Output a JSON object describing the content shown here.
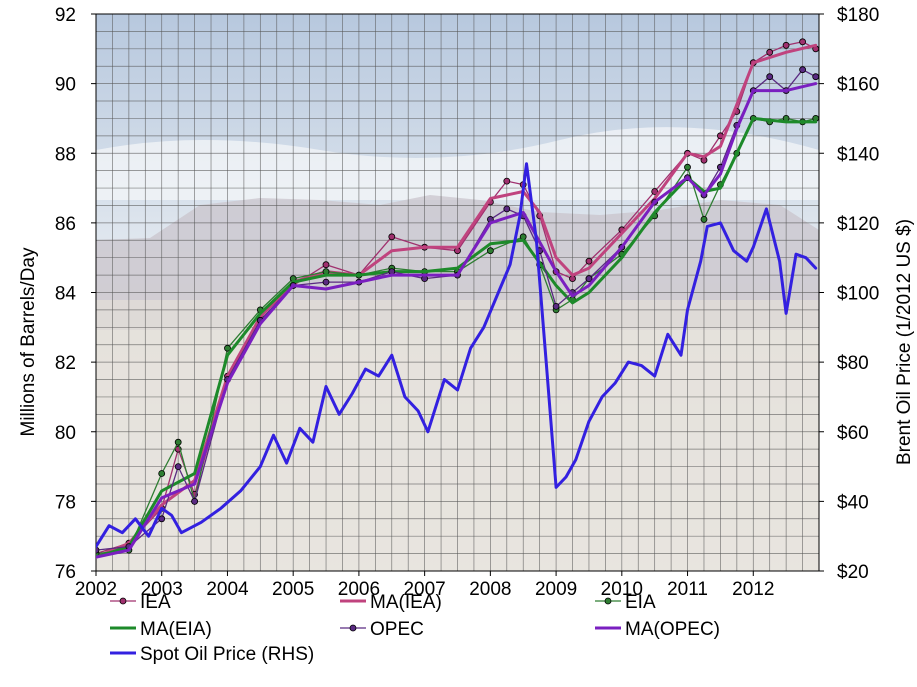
{
  "chart_data": {
    "type": "line",
    "xlabel": "",
    "ylabel": "Millions of Barrels/Day",
    "ylabel_right": "Brent Oil Price (1/2012 US $)",
    "xlim": [
      2002,
      2013
    ],
    "ylim": [
      76,
      92
    ],
    "ylim_right": [
      20,
      180
    ],
    "x_ticks": [
      "2002",
      "2003",
      "2004",
      "2005",
      "2006",
      "2007",
      "2008",
      "2009",
      "2010",
      "2011",
      "2012"
    ],
    "y_ticks_left": [
      "76",
      "78",
      "80",
      "82",
      "84",
      "86",
      "88",
      "90",
      "92"
    ],
    "y_ticks_right": [
      "$20",
      "$40",
      "$60",
      "$80",
      "$100",
      "$120",
      "$140",
      "$160",
      "$180"
    ],
    "grid": true,
    "background": "faded landscape photograph (mountain and city)",
    "legend_position": "bottom",
    "series": [
      {
        "name": "IEA",
        "axis": "left",
        "color": "#a0306e",
        "style": "line+markers",
        "x": [
          2002.0,
          2002.5,
          2003.0,
          2003.25,
          2003.5,
          2004.0,
          2004.5,
          2005.0,
          2005.5,
          2006.0,
          2006.5,
          2007.0,
          2007.5,
          2008.0,
          2008.25,
          2008.5,
          2008.75,
          2009.0,
          2009.25,
          2009.5,
          2010.0,
          2010.5,
          2011.0,
          2011.25,
          2011.5,
          2011.75,
          2012.0,
          2012.25,
          2012.5,
          2012.75,
          2012.95
        ],
        "y": [
          76.5,
          76.8,
          77.8,
          79.5,
          78.2,
          81.6,
          83.3,
          84.2,
          84.8,
          84.5,
          85.6,
          85.3,
          85.2,
          86.6,
          87.2,
          87.1,
          86.2,
          84.6,
          84.4,
          84.9,
          85.8,
          86.9,
          88.0,
          87.8,
          88.5,
          89.2,
          90.6,
          90.9,
          91.1,
          91.2,
          91.0
        ]
      },
      {
        "name": "MA(IEA)",
        "axis": "left",
        "color": "#c0437e",
        "style": "line",
        "x": [
          2002.0,
          2002.5,
          2003.0,
          2003.5,
          2004.0,
          2004.5,
          2005.0,
          2005.5,
          2006.0,
          2006.5,
          2007.0,
          2007.5,
          2008.0,
          2008.5,
          2008.75,
          2009.0,
          2009.25,
          2009.5,
          2010.0,
          2010.5,
          2011.0,
          2011.25,
          2011.5,
          2011.75,
          2012.0,
          2012.5,
          2012.95
        ],
        "y": [
          76.4,
          76.8,
          77.9,
          78.6,
          81.6,
          83.3,
          84.3,
          84.6,
          84.5,
          85.2,
          85.3,
          85.3,
          86.7,
          86.9,
          86.3,
          85.0,
          84.5,
          84.7,
          85.7,
          86.7,
          88.0,
          87.9,
          88.2,
          89.4,
          90.6,
          90.9,
          91.1
        ]
      },
      {
        "name": "EIA",
        "axis": "left",
        "color": "#2e7d32",
        "style": "line+markers",
        "x": [
          2002.0,
          2002.5,
          2003.0,
          2003.25,
          2003.5,
          2004.0,
          2004.5,
          2005.0,
          2005.5,
          2006.0,
          2006.5,
          2007.0,
          2007.5,
          2008.0,
          2008.5,
          2008.75,
          2009.0,
          2009.25,
          2009.5,
          2010.0,
          2010.5,
          2011.0,
          2011.25,
          2011.5,
          2011.75,
          2012.0,
          2012.25,
          2012.5,
          2012.75,
          2012.95
        ],
        "y": [
          76.5,
          76.6,
          78.8,
          79.7,
          78.0,
          82.4,
          83.5,
          84.4,
          84.6,
          84.5,
          84.7,
          84.6,
          84.6,
          85.2,
          85.6,
          84.8,
          83.5,
          83.8,
          84.4,
          85.1,
          86.2,
          87.6,
          86.1,
          87.1,
          88.0,
          89.0,
          88.9,
          89.0,
          88.9,
          89.0
        ]
      },
      {
        "name": "MA(EIA)",
        "axis": "left",
        "color": "#1d8a2a",
        "style": "line",
        "x": [
          2002.0,
          2002.5,
          2003.0,
          2003.5,
          2004.0,
          2004.5,
          2005.0,
          2005.5,
          2006.0,
          2006.5,
          2007.0,
          2007.5,
          2008.0,
          2008.5,
          2009.0,
          2009.25,
          2009.5,
          2010.0,
          2010.5,
          2011.0,
          2011.25,
          2011.5,
          2011.75,
          2012.0,
          2012.5,
          2012.95
        ],
        "y": [
          76.4,
          76.7,
          78.3,
          78.8,
          82.2,
          83.4,
          84.3,
          84.5,
          84.5,
          84.6,
          84.6,
          84.7,
          85.4,
          85.5,
          84.2,
          83.7,
          84.0,
          85.0,
          86.3,
          87.3,
          86.9,
          87.0,
          88.0,
          89.0,
          88.9,
          88.9
        ]
      },
      {
        "name": "OPEC",
        "axis": "left",
        "color": "#5a2a82",
        "style": "line+markers",
        "x": [
          2002.0,
          2002.5,
          2003.0,
          2003.25,
          2003.5,
          2004.0,
          2004.5,
          2005.0,
          2005.5,
          2006.0,
          2006.5,
          2007.0,
          2007.5,
          2008.0,
          2008.25,
          2008.5,
          2008.75,
          2009.0,
          2009.25,
          2009.5,
          2010.0,
          2010.5,
          2011.0,
          2011.25,
          2011.5,
          2011.75,
          2012.0,
          2012.25,
          2012.5,
          2012.75,
          2012.95
        ],
        "y": [
          76.6,
          76.7,
          77.5,
          79.0,
          78.0,
          81.5,
          83.2,
          84.2,
          84.3,
          84.3,
          84.6,
          84.4,
          84.5,
          86.1,
          86.4,
          86.2,
          85.2,
          83.6,
          84.0,
          84.4,
          85.3,
          86.6,
          87.3,
          86.8,
          87.6,
          88.8,
          89.8,
          90.2,
          89.8,
          90.4,
          90.2
        ]
      },
      {
        "name": "MA(OPEC)",
        "axis": "left",
        "color": "#7a1fc0",
        "style": "line",
        "x": [
          2002.0,
          2002.5,
          2003.0,
          2003.5,
          2004.0,
          2004.5,
          2005.0,
          2005.5,
          2006.0,
          2006.5,
          2007.0,
          2007.5,
          2008.0,
          2008.5,
          2009.0,
          2009.25,
          2009.5,
          2010.0,
          2010.5,
          2011.0,
          2011.25,
          2011.5,
          2011.75,
          2012.0,
          2012.5,
          2012.95
        ],
        "y": [
          76.4,
          76.6,
          78.1,
          78.5,
          81.4,
          83.1,
          84.2,
          84.1,
          84.3,
          84.5,
          84.5,
          84.5,
          86.0,
          86.3,
          84.6,
          83.9,
          84.2,
          85.3,
          86.6,
          87.3,
          86.8,
          87.4,
          88.7,
          89.8,
          89.8,
          90.0
        ]
      },
      {
        "name": "Spot Oil Price (RHS)",
        "axis": "right",
        "color": "#3320e0",
        "style": "line",
        "x": [
          2002.0,
          2002.2,
          2002.4,
          2002.6,
          2002.8,
          2003.0,
          2003.15,
          2003.3,
          2003.6,
          2003.9,
          2004.2,
          2004.5,
          2004.7,
          2004.9,
          2005.1,
          2005.3,
          2005.5,
          2005.7,
          2005.9,
          2006.1,
          2006.3,
          2006.5,
          2006.7,
          2006.9,
          2007.05,
          2007.3,
          2007.5,
          2007.7,
          2007.9,
          2008.1,
          2008.3,
          2008.45,
          2008.55,
          2008.7,
          2008.85,
          2009.0,
          2009.15,
          2009.3,
          2009.5,
          2009.7,
          2009.9,
          2010.1,
          2010.3,
          2010.5,
          2010.7,
          2010.9,
          2011.0,
          2011.2,
          2011.3,
          2011.5,
          2011.7,
          2011.9,
          2012.0,
          2012.2,
          2012.4,
          2012.5,
          2012.65,
          2012.8,
          2012.95
        ],
        "y": [
          27,
          33,
          31,
          35,
          30,
          38,
          36,
          31,
          34,
          38,
          43,
          50,
          59,
          51,
          61,
          57,
          73,
          65,
          71,
          78,
          76,
          82,
          70,
          66,
          60,
          75,
          72,
          84,
          90,
          99,
          108,
          122,
          137,
          115,
          80,
          44,
          47,
          52,
          63,
          70,
          74,
          80,
          79,
          76,
          88,
          82,
          95,
          109,
          119,
          120,
          112,
          109,
          113,
          124,
          109,
          94,
          111,
          110,
          107
        ]
      }
    ]
  }
}
